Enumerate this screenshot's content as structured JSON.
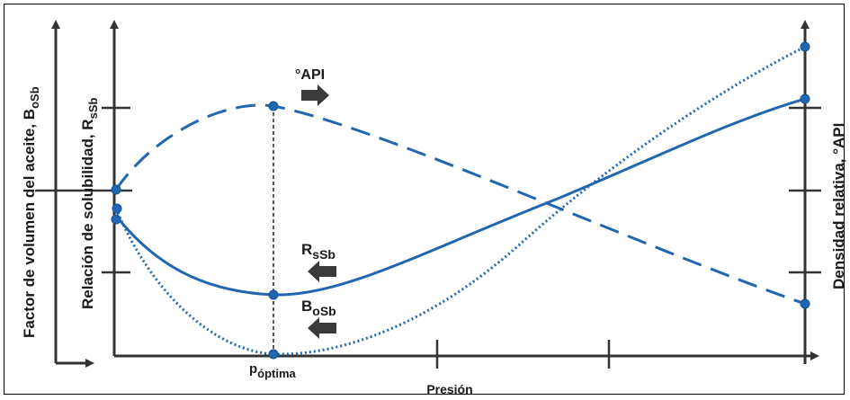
{
  "labels": {
    "outer_left_axis": "Factor de volumen del aceite, B",
    "outer_left_axis_sub": "oSb",
    "inner_left_axis": "Relación de solubilidad, R",
    "inner_left_axis_sub": "sSb",
    "right_axis": "Densidad relativa, °API",
    "x_axis": "Presión",
    "p_optima": "p",
    "p_optima_sub": "óptima"
  },
  "curve_labels": {
    "api": "°API",
    "rs": "R",
    "rs_sub": "sSb",
    "bo": "B",
    "bo_sub": "oSb"
  },
  "colors": {
    "curve": "#2166b0",
    "axis": "#333333",
    "arrow_fill": "#3a3a3a"
  }
}
